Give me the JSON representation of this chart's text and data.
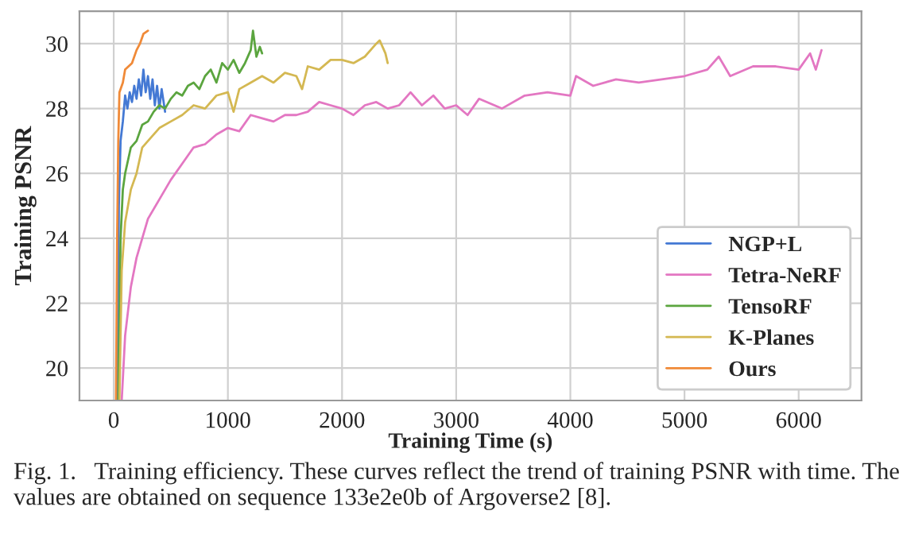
{
  "chart_data": {
    "type": "line",
    "xlabel": "Training Time (s)",
    "ylabel": "Training PSNR",
    "xlim": [
      -300,
      6550
    ],
    "ylim": [
      19,
      31
    ],
    "xticks": [
      0,
      1000,
      2000,
      3000,
      4000,
      5000,
      6000
    ],
    "yticks": [
      20,
      22,
      24,
      26,
      28,
      30
    ],
    "grid": true,
    "legend": "bottom right",
    "line_style": "solid",
    "annotations": [
      "Fig. 1.   Training efficiency. These curves reflect the trend of training PSNR with time. The values are obtained on sequence 133e2e0b of Argoverse2 [8]."
    ],
    "series": [
      {
        "name": "NGP+L",
        "color": "#4479d4",
        "x": [
          30,
          45,
          60,
          80,
          100,
          120,
          140,
          160,
          180,
          200,
          220,
          240,
          260,
          280,
          300,
          320,
          340,
          360,
          380,
          400,
          420,
          450
        ],
        "values": [
          19,
          25,
          27,
          27.6,
          28.4,
          28.0,
          28.5,
          28.2,
          28.7,
          28.3,
          28.9,
          28.4,
          29.2,
          28.5,
          29.0,
          28.3,
          28.9,
          28.1,
          28.7,
          28.0,
          28.6,
          27.9
        ]
      },
      {
        "name": "Tetra-NeRF",
        "color": "#e377c2",
        "x": [
          70,
          100,
          150,
          200,
          250,
          300,
          400,
          500,
          600,
          700,
          800,
          900,
          1000,
          1100,
          1200,
          1300,
          1400,
          1500,
          1600,
          1700,
          1800,
          1900,
          2000,
          2100,
          2200,
          2300,
          2400,
          2500,
          2600,
          2700,
          2800,
          2900,
          3000,
          3100,
          3200,
          3400,
          3600,
          3800,
          4000,
          4050,
          4200,
          4400,
          4600,
          4800,
          5000,
          5200,
          5300,
          5400,
          5600,
          5800,
          6000,
          6100,
          6150,
          6200
        ],
        "values": [
          19,
          21,
          22.5,
          23.4,
          24.0,
          24.6,
          25.2,
          25.8,
          26.3,
          26.8,
          26.9,
          27.2,
          27.4,
          27.3,
          27.8,
          27.7,
          27.6,
          27.8,
          27.8,
          27.9,
          28.2,
          28.1,
          28.0,
          27.8,
          28.1,
          28.2,
          28.0,
          28.1,
          28.5,
          28.1,
          28.4,
          28.0,
          28.1,
          27.8,
          28.3,
          28.0,
          28.4,
          28.5,
          28.4,
          29.0,
          28.7,
          28.9,
          28.8,
          28.9,
          29.0,
          29.2,
          29.6,
          29.0,
          29.3,
          29.3,
          29.2,
          29.7,
          29.2,
          29.8
        ]
      },
      {
        "name": "TensoRF",
        "color": "#5ba53f",
        "x": [
          40,
          60,
          80,
          100,
          150,
          200,
          250,
          300,
          350,
          400,
          450,
          500,
          550,
          600,
          650,
          700,
          750,
          800,
          850,
          900,
          950,
          1000,
          1050,
          1100,
          1150,
          1200,
          1220,
          1250,
          1280,
          1300
        ],
        "values": [
          19,
          24,
          25.5,
          26,
          26.8,
          27.0,
          27.5,
          27.6,
          27.9,
          28.1,
          28.0,
          28.3,
          28.5,
          28.4,
          28.7,
          28.8,
          28.6,
          29.0,
          29.2,
          28.8,
          29.4,
          29.2,
          29.5,
          29.1,
          29.4,
          29.8,
          30.4,
          29.6,
          29.9,
          29.7
        ]
      },
      {
        "name": "K-Planes",
        "color": "#d4b852",
        "x": [
          50,
          70,
          100,
          150,
          200,
          250,
          300,
          400,
          500,
          600,
          700,
          800,
          900,
          1000,
          1050,
          1100,
          1200,
          1300,
          1400,
          1500,
          1600,
          1650,
          1700,
          1800,
          1900,
          2000,
          2100,
          2200,
          2300,
          2330,
          2380,
          2400
        ],
        "values": [
          19,
          23,
          24.5,
          25.5,
          26.0,
          26.8,
          27.0,
          27.4,
          27.6,
          27.8,
          28.1,
          28.0,
          28.4,
          28.5,
          27.9,
          28.6,
          28.8,
          29.0,
          28.8,
          29.1,
          29.0,
          28.6,
          29.3,
          29.2,
          29.5,
          29.5,
          29.4,
          29.6,
          30.0,
          30.1,
          29.7,
          29.4
        ]
      },
      {
        "name": "Ours",
        "color": "#f08a38",
        "x": [
          20,
          30,
          40,
          50,
          80,
          100,
          130,
          160,
          200,
          230,
          260,
          300
        ],
        "values": [
          19,
          24,
          27,
          28.5,
          28.8,
          29.2,
          29.3,
          29.4,
          29.8,
          30.0,
          30.3,
          30.4
        ]
      }
    ]
  }
}
